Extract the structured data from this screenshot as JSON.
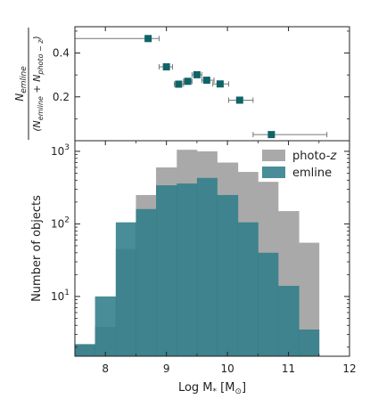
{
  "colors": {
    "photoz": "#a9a9a9",
    "emline": "#2f7d89",
    "marker": "#0e6467",
    "errorbar": "#777777",
    "axis": "#222222"
  },
  "chart_data": [
    {
      "type": "scatter",
      "ylabel": "N_emline / (N_emline + N_photo-z)",
      "ylabel_num": "N",
      "ylabel_num_sub": "emline",
      "ylabel_den_open": "(N",
      "ylabel_den_sub1": "emline",
      "ylabel_den_mid": " + N",
      "ylabel_den_sub2": "photo − z",
      "ylabel_den_close": ")",
      "xlim": [
        7.5,
        12
      ],
      "ylim": [
        0.0,
        0.52
      ],
      "yticks": [
        0.2,
        0.4
      ],
      "ytick_labels": [
        "0.2",
        "0.4"
      ],
      "points": [
        {
          "x": 8.7,
          "y": 0.466,
          "xerr_lo": 7.5,
          "xerr_hi": 8.88
        },
        {
          "x": 9.0,
          "y": 0.337,
          "xerr_lo": 8.88,
          "xerr_hi": 9.1
        },
        {
          "x": 9.2,
          "y": 0.258,
          "xerr_lo": 9.13,
          "xerr_hi": 9.28
        },
        {
          "x": 9.35,
          "y": 0.271,
          "xerr_lo": 9.28,
          "xerr_hi": 9.42
        },
        {
          "x": 9.5,
          "y": 0.301,
          "xerr_lo": 9.42,
          "xerr_hi": 9.58
        },
        {
          "x": 9.66,
          "y": 0.276,
          "xerr_lo": 9.58,
          "xerr_hi": 9.78
        },
        {
          "x": 9.88,
          "y": 0.259,
          "xerr_lo": 9.76,
          "xerr_hi": 10.02
        },
        {
          "x": 10.2,
          "y": 0.185,
          "xerr_lo": 10.02,
          "xerr_hi": 10.42
        },
        {
          "x": 10.72,
          "y": 0.028,
          "xerr_lo": 10.42,
          "xerr_hi": 11.63
        }
      ]
    },
    {
      "type": "bar",
      "subtype": "histogram",
      "xlabel": "Log M∗ [M⊙]",
      "xlabel_main": "Log M",
      "xlabel_sub": "*",
      "xlabel_unit_open": " [M",
      "xlabel_unit_sub": "⊙",
      "xlabel_unit_close": "]",
      "ylabel": "Number of objects",
      "xlim": [
        7.5,
        12
      ],
      "ylim": [
        1.5,
        1400
      ],
      "yscale": "log",
      "xticks": [
        8,
        9,
        10,
        11,
        12
      ],
      "xtick_labels": [
        "8",
        "9",
        "10",
        "11",
        "12"
      ],
      "yticks": [
        10,
        100,
        1000
      ],
      "ytick_labels": [
        "10",
        "10",
        "10"
      ],
      "ytick_exps": [
        "1",
        "2",
        "3"
      ],
      "bin_edges": [
        7.5,
        7.83,
        8.17,
        8.5,
        8.83,
        9.17,
        9.5,
        9.83,
        10.17,
        10.5,
        10.83,
        11.17,
        11.5
      ],
      "legend_position": "top-right",
      "series": [
        {
          "name": "photo-z",
          "name_main": "photo-",
          "name_italic": "z",
          "values": [
            2.2,
            3.8,
            45,
            250,
            600,
            1050,
            1000,
            700,
            520,
            380,
            150,
            55,
            0
          ]
        },
        {
          "name": "emline",
          "values": [
            2.2,
            10,
            105,
            160,
            340,
            360,
            430,
            250,
            105,
            40,
            14,
            3.5,
            0
          ]
        }
      ]
    }
  ]
}
